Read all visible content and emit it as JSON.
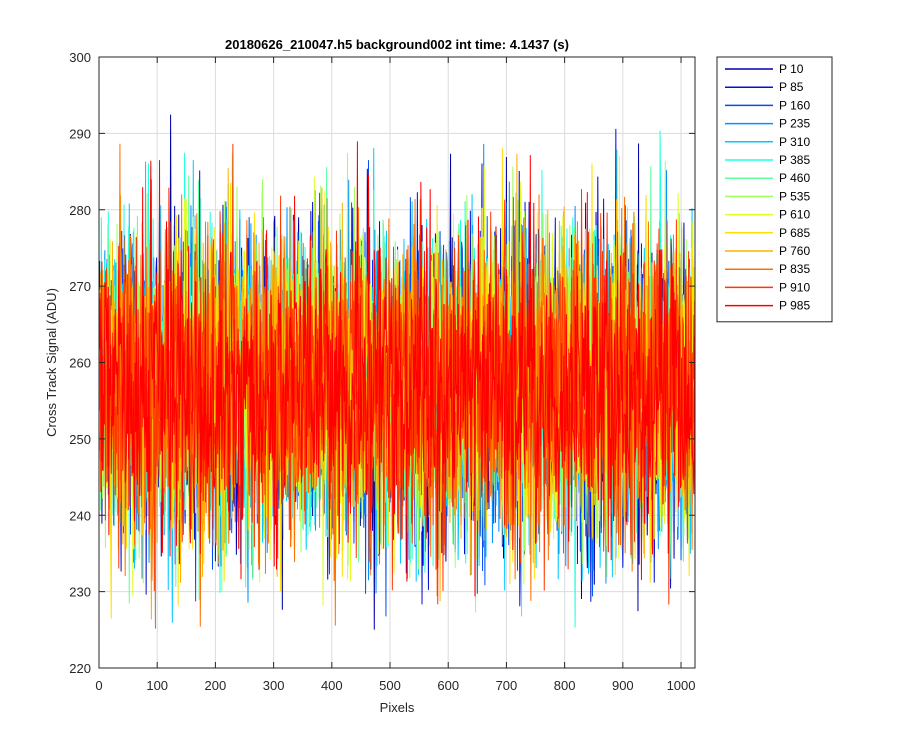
{
  "chart_data": {
    "type": "line",
    "title": "20180626_210047.h5  background002   int time: 4.1437 (s)",
    "xlabel": "Pixels",
    "ylabel": "Cross Track Signal (ADU)",
    "xlim": [
      0,
      1024
    ],
    "ylim": [
      220,
      300
    ],
    "xticks": [
      0,
      100,
      200,
      300,
      400,
      500,
      600,
      700,
      800,
      900,
      1000
    ],
    "yticks": [
      220,
      230,
      240,
      250,
      260,
      270,
      280,
      290,
      300
    ],
    "grid": true,
    "legend_position": "outside-top-right",
    "x": "pixel index 1..1024",
    "series": [
      {
        "name": "P 10",
        "color": "#0000a8",
        "mean": 257,
        "std": 10,
        "min": 225,
        "max": 295
      },
      {
        "name": "P 85",
        "color": "#0010d8",
        "mean": 257,
        "std": 10,
        "min": 225,
        "max": 299
      },
      {
        "name": "P 160",
        "color": "#0050f0",
        "mean": 257,
        "std": 10,
        "min": 225,
        "max": 294
      },
      {
        "name": "P 235",
        "color": "#0090ff",
        "mean": 257,
        "std": 10,
        "min": 224,
        "max": 291
      },
      {
        "name": "P 310",
        "color": "#00c8ff",
        "mean": 257,
        "std": 10,
        "min": 224,
        "max": 291
      },
      {
        "name": "P 385",
        "color": "#20ffe0",
        "mean": 257,
        "std": 10,
        "min": 224,
        "max": 296
      },
      {
        "name": "P 460",
        "color": "#60ffa0",
        "mean": 257,
        "std": 10,
        "min": 225,
        "max": 290
      },
      {
        "name": "P 535",
        "color": "#a0ff60",
        "mean": 257,
        "std": 10,
        "min": 223,
        "max": 291
      },
      {
        "name": "P 610",
        "color": "#e0ff20",
        "mean": 257,
        "std": 10,
        "min": 225,
        "max": 293
      },
      {
        "name": "P 685",
        "color": "#ffe000",
        "mean": 257,
        "std": 10,
        "min": 226,
        "max": 293
      },
      {
        "name": "P 760",
        "color": "#ffb000",
        "mean": 257,
        "std": 10,
        "min": 226,
        "max": 294
      },
      {
        "name": "P 835",
        "color": "#ff7000",
        "mean": 257,
        "std": 10,
        "min": 224,
        "max": 290
      },
      {
        "name": "P 910",
        "color": "#ff3800",
        "mean": 257,
        "std": 10,
        "min": 223,
        "max": 289
      },
      {
        "name": "P 985",
        "color": "#ff0000",
        "mean": 257,
        "std": 10,
        "min": 223,
        "max": 289
      }
    ]
  }
}
